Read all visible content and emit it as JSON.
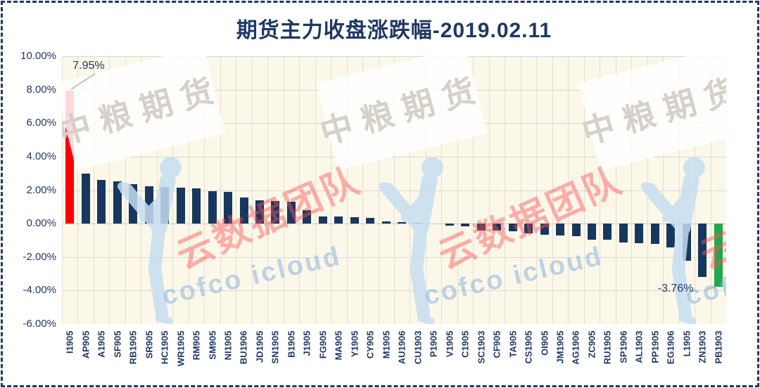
{
  "title": "期货主力收盘涨跌幅-2019.02.11",
  "chart_data": {
    "type": "bar",
    "title": "期货主力收盘涨跌幅-2019.02.11",
    "categories": [
      "I1905",
      "AP905",
      "A1905",
      "SF905",
      "RB1905",
      "SR905",
      "HC1905",
      "WR1905",
      "RM905",
      "SM905",
      "NI1905",
      "BU1906",
      "JD1905",
      "SN1905",
      "B1905",
      "J1905",
      "FG905",
      "MA905",
      "Y1905",
      "CY905",
      "M1905",
      "AU1906",
      "CU1903",
      "P1905",
      "V1905",
      "C1905",
      "SC1903",
      "CF905",
      "TA905",
      "CS1905",
      "OI905",
      "JM1905",
      "AG1906",
      "ZC905",
      "RU1905",
      "SP1906",
      "AL1903",
      "PP1905",
      "EG1906",
      "L1905",
      "ZN1903",
      "PB1903"
    ],
    "values": [
      7.95,
      3.0,
      2.61,
      2.53,
      2.38,
      2.24,
      2.21,
      2.13,
      2.09,
      1.96,
      1.9,
      1.56,
      1.38,
      1.35,
      1.33,
      0.79,
      0.43,
      0.41,
      0.4,
      0.34,
      0.15,
      0.1,
      0.05,
      0.0,
      -0.13,
      -0.17,
      -0.43,
      -0.43,
      -0.44,
      -0.6,
      -0.65,
      -0.7,
      -0.75,
      -0.95,
      -0.97,
      -1.15,
      -1.17,
      -1.21,
      -1.41,
      -2.21,
      -3.19,
      -3.76
    ],
    "xlabel": "",
    "ylabel": "",
    "ylim": [
      -6,
      10
    ],
    "ytick_step": 2,
    "ytick_labels": [
      "10.00%",
      "8.00%",
      "6.00%",
      "4.00%",
      "2.00%",
      "0.00%",
      "-2.00%",
      "-4.00%",
      "-6.00%"
    ],
    "grid": true,
    "legend": false,
    "annotations": [
      {
        "category": "I1905",
        "text": "7.95%"
      },
      {
        "category": "PB1903",
        "text": "-3.76%"
      }
    ],
    "colors": {
      "bar_first": "#ff0000",
      "bar_default": "#17375e",
      "bar_last": "#21a84e",
      "title": "#1f3864",
      "axis_text": "#1f3864",
      "gridline": "#d6d6d6",
      "plot_bg": "#fcf8e9"
    }
  },
  "watermarks": {
    "brand_text": "中粮期货",
    "stamp_text": "云数据团队",
    "cloud_text": "cofco icloud"
  }
}
